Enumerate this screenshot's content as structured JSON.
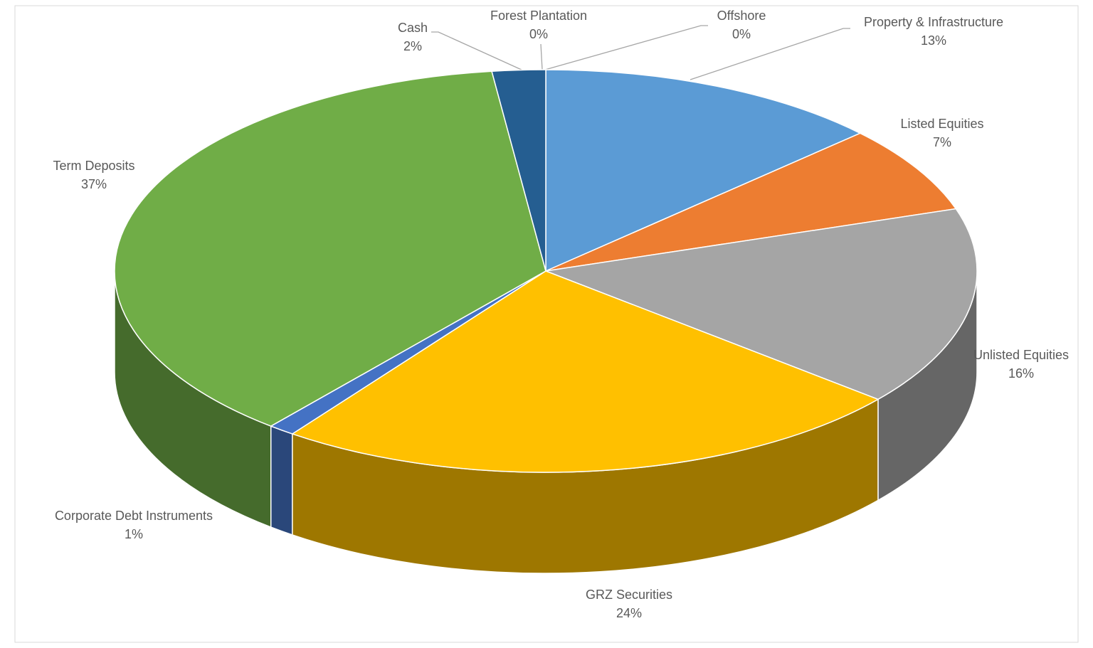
{
  "chart_data": {
    "type": "pie",
    "categories": [
      "Offshore",
      "Property & Infrastructure",
      "Listed Equities",
      "Unlisted Equities",
      "GRZ Securities",
      "Corporate Debt Instruments",
      "Term Deposits",
      "Cash",
      "Forest Plantation"
    ],
    "values": [
      0,
      13,
      7,
      16,
      24,
      1,
      37,
      2,
      0
    ],
    "value_labels": [
      "0%",
      "13%",
      "7%",
      "16%",
      "24%",
      "1%",
      "37%",
      "2%",
      "0%"
    ],
    "colors": [
      "#c55a11",
      "#5b9bd5",
      "#ed7d31",
      "#a5a5a5",
      "#ffc000",
      "#4472c4",
      "#70ad47",
      "#255e91",
      "#9e480e"
    ]
  }
}
